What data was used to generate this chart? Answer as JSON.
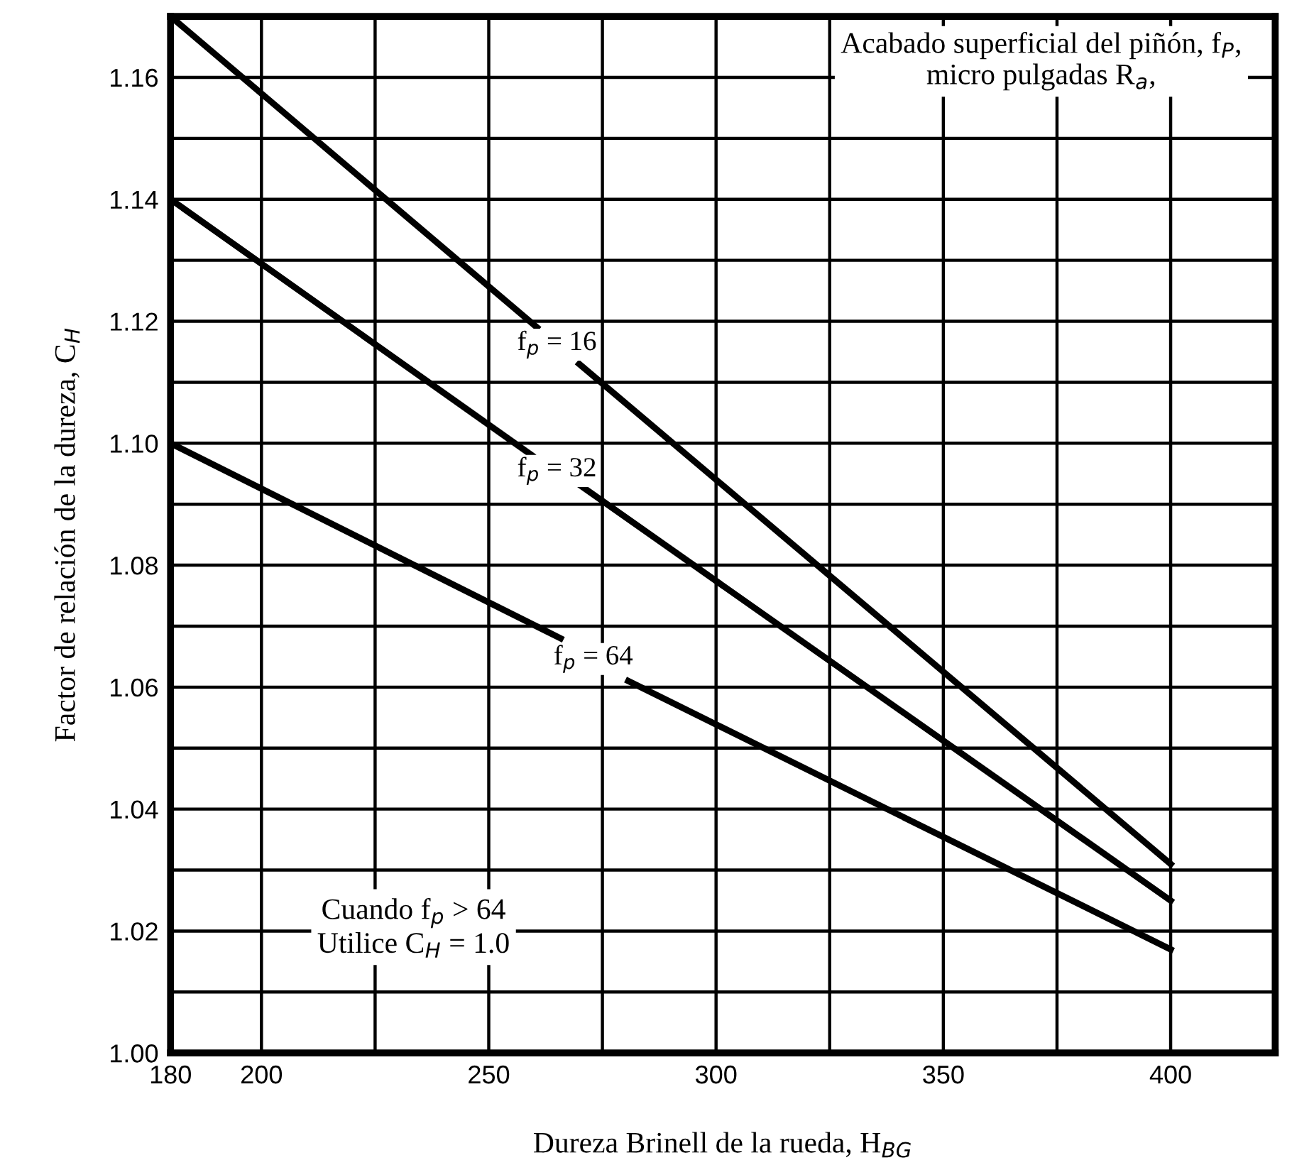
{
  "chart_data": {
    "type": "line",
    "xlabel": "Dureza Brinell de la rueda, H$_{BG}$",
    "ylabel": "Factor de relación de la dureza, C$_{H}$",
    "series": [
      {
        "name": "f$_{p}$ = 16",
        "color": "#000000",
        "x": [
          180,
          260.6,
          265,
          269.9,
          400
        ],
        "values": [
          1.17,
          1.119,
          null,
          1.113,
          1.031
        ]
      },
      {
        "name": "f$_{p}$ = 32",
        "color": "#000000",
        "x": [
          180,
          259.5,
          265,
          270.3,
          400
        ],
        "values": [
          1.14,
          1.098,
          null,
          1.093,
          1.025
        ]
      },
      {
        "name": "f$_{p}$ = 64",
        "color": "#000000",
        "x": [
          180,
          265.8,
          273,
          280.7,
          400
        ],
        "values": [
          1.1,
          1.068,
          null,
          1.061,
          1.017
        ]
      }
    ],
    "annotations": [
      "Acabado superficial del piñón, f$_{P}$,\nmicro pulgadas R$_{a}$,",
      "Cuando f$_{p}$ > 64\nUtilice C$_{H}$ = 1.0"
    ],
    "xlim": [
      180,
      423
    ],
    "ylim": [
      1.0,
      1.17
    ],
    "xticks": [
      180,
      200,
      {
        "value": 225,
        "label": null
      },
      250,
      {
        "value": 275,
        "label": null
      },
      300,
      {
        "value": 325,
        "label": null
      },
      350,
      {
        "value": 375,
        "label": null
      },
      400
    ],
    "yticks": [
      {
        "value": 1.0,
        "label": "1.00"
      },
      {
        "value": 1.01,
        "label": null
      },
      {
        "value": 1.02,
        "label": "1.02"
      },
      {
        "value": 1.03,
        "label": null
      },
      {
        "value": 1.04,
        "label": "1.04"
      },
      {
        "value": 1.05,
        "label": null
      },
      {
        "value": 1.06,
        "label": "1.06"
      },
      {
        "value": 1.07,
        "label": null
      },
      {
        "value": 1.08,
        "label": "1.08"
      },
      {
        "value": 1.09,
        "label": null
      },
      {
        "value": 1.1,
        "label": "1.10"
      },
      {
        "value": 1.11,
        "label": null
      },
      {
        "value": 1.12,
        "label": "1.12"
      },
      {
        "value": 1.13,
        "label": null
      },
      {
        "value": 1.14,
        "label": "1.14"
      },
      {
        "value": 1.15,
        "label": null
      },
      {
        "value": 1.16,
        "label": "1.16"
      }
    ],
    "grid": true,
    "legend": false,
    "marker": "none",
    "line_style": "solid"
  }
}
